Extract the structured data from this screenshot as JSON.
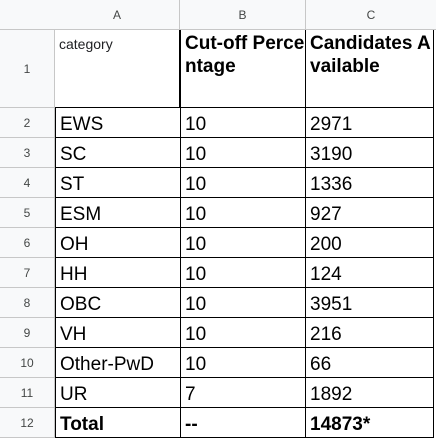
{
  "columns": [
    "A",
    "B",
    "C"
  ],
  "header": {
    "category": "category",
    "cutoff": "Cut-off Percentage",
    "candidates": "Candidates Available"
  },
  "row_numbers": [
    "1",
    "2",
    "3",
    "4",
    "5",
    "6",
    "7",
    "8",
    "9",
    "10",
    "11",
    "12"
  ],
  "rows": [
    {
      "category": "EWS",
      "cutoff": "10",
      "candidates": "2971"
    },
    {
      "category": "SC",
      "cutoff": "10",
      "candidates": "3190"
    },
    {
      "category": "ST",
      "cutoff": "10",
      "candidates": "1336"
    },
    {
      "category": "ESM",
      "cutoff": "10",
      "candidates": "927"
    },
    {
      "category": "OH",
      "cutoff": "10",
      "candidates": "200"
    },
    {
      "category": "HH",
      "cutoff": "10",
      "candidates": "124"
    },
    {
      "category": "OBC",
      "cutoff": "10",
      "candidates": "3951"
    },
    {
      "category": "VH",
      "cutoff": "10",
      "candidates": "216"
    },
    {
      "category": "Other-PwD",
      "cutoff": "10",
      "candidates": "66"
    },
    {
      "category": "UR",
      "cutoff": "7",
      "candidates": "1892"
    }
  ],
  "total": {
    "category": "Total",
    "cutoff": "--",
    "candidates": "14873*"
  }
}
